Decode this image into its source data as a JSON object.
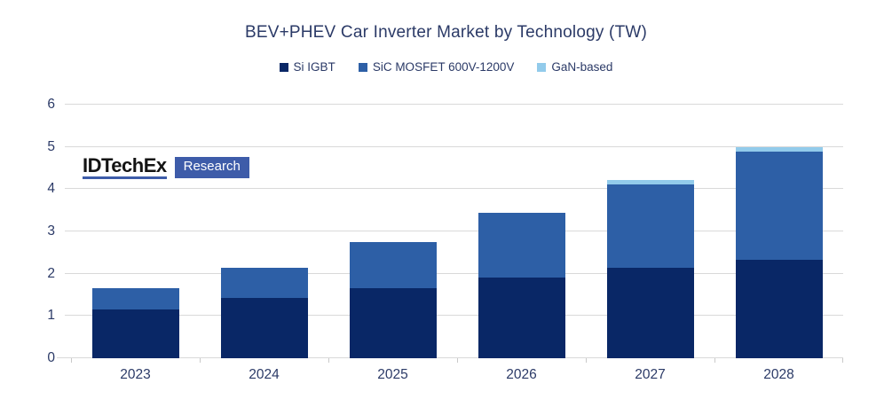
{
  "title": "BEV+PHEV Car Inverter Market by Technology (TW)",
  "logo": {
    "brand": "IDTechEx",
    "badge": "Research"
  },
  "colors": {
    "text": "#2b3a67",
    "grid": "#d9d9d9",
    "background": "#ffffff",
    "logo_accent": "#3e5ca9"
  },
  "chart_data": {
    "type": "bar",
    "stacked": true,
    "title": "BEV+PHEV Car Inverter Market by Technology (TW)",
    "xlabel": "",
    "ylabel": "",
    "categories": [
      "2023",
      "2024",
      "2025",
      "2026",
      "2027",
      "2028"
    ],
    "series": [
      {
        "name": "Si IGBT",
        "color": "#092766",
        "values": [
          1.15,
          1.42,
          1.65,
          1.9,
          2.15,
          2.33
        ]
      },
      {
        "name": "SiC MOSFET 600V-1200V",
        "color": "#2d5fa6",
        "values": [
          0.5,
          0.73,
          1.1,
          1.55,
          1.97,
          2.55
        ]
      },
      {
        "name": "GaN-based",
        "color": "#92cbeb",
        "values": [
          0.0,
          0.0,
          0.0,
          0.0,
          0.1,
          0.12
        ]
      }
    ],
    "totals": [
      1.65,
      2.15,
      2.75,
      3.45,
      4.22,
      5.0
    ],
    "ylim": [
      0,
      6
    ],
    "yticks": [
      0,
      1,
      2,
      3,
      4,
      5,
      6
    ],
    "grid": true,
    "legend_position": "top"
  }
}
